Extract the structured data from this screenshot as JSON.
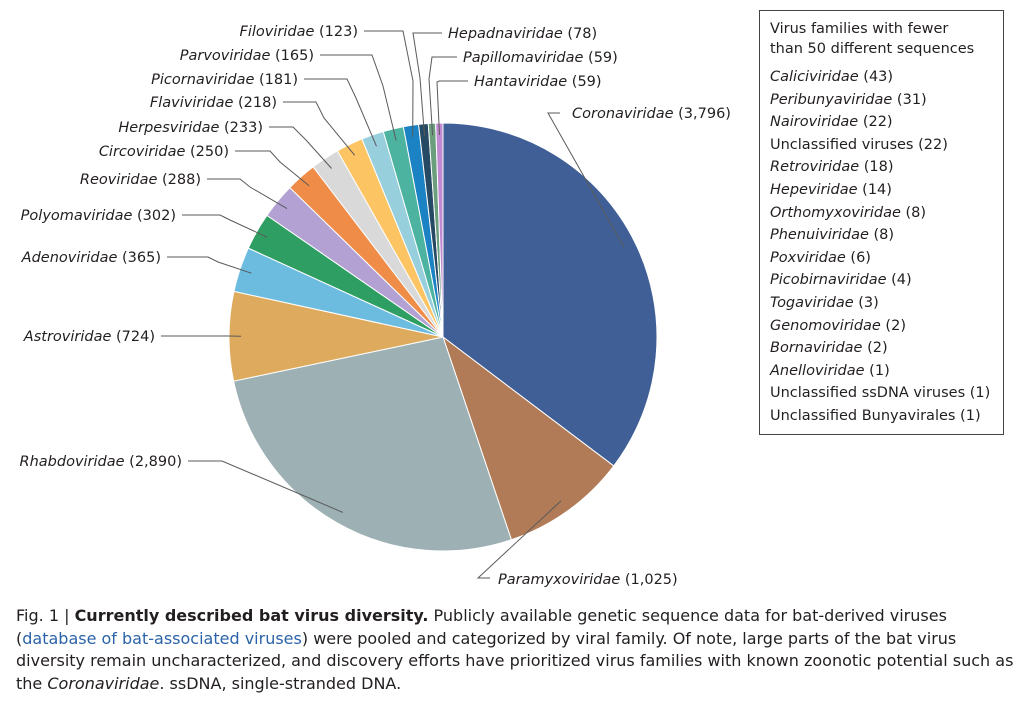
{
  "chart_data": {
    "type": "pie",
    "slices": [
      {
        "label": "Coronaviridae",
        "display": "(3,796)",
        "value": 3796,
        "color": "#3f5f96",
        "italic": true
      },
      {
        "label": "Paramyxoviridae",
        "display": "(1,025)",
        "value": 1025,
        "color": "#b07b56",
        "italic": true
      },
      {
        "label": "Rhabdoviridae",
        "display": "(2,890)",
        "value": 2890,
        "color": "#9db1b5",
        "italic": true
      },
      {
        "label": "Astroviridae",
        "display": "(724)",
        "value": 724,
        "color": "#deab5e",
        "italic": true
      },
      {
        "label": "Adenoviridae",
        "display": "(365)",
        "value": 365,
        "color": "#6cbcdf",
        "italic": true
      },
      {
        "label": "Polyomaviridae",
        "display": "(302)",
        "value": 302,
        "color": "#2e9e62",
        "italic": true
      },
      {
        "label": "Reoviridae",
        "display": "(288)",
        "value": 288,
        "color": "#b2a1d2",
        "italic": true
      },
      {
        "label": "Circoviridae",
        "display": "(250)",
        "value": 250,
        "color": "#ee8c48",
        "italic": true
      },
      {
        "label": "Herpesviridae",
        "display": "(233)",
        "value": 233,
        "color": "#d9d9d9",
        "italic": true
      },
      {
        "label": "Flaviviridae",
        "display": "(218)",
        "value": 218,
        "color": "#fcc463",
        "italic": true
      },
      {
        "label": "Picornaviridae",
        "display": "(181)",
        "value": 181,
        "color": "#98cfdc",
        "italic": true
      },
      {
        "label": "Parvoviridae",
        "display": "(165)",
        "value": 165,
        "color": "#4bb39f",
        "italic": true
      },
      {
        "label": "Filoviridae",
        "display": "(123)",
        "value": 123,
        "color": "#1b82c3",
        "italic": true
      },
      {
        "label": "Hepadnaviridae",
        "display": "(78)",
        "value": 78,
        "color": "#264a63",
        "italic": true
      },
      {
        "label": "Papillomaviridae",
        "display": "(59)",
        "value": 59,
        "color": "#6b9e7c",
        "italic": true
      },
      {
        "label": "Hantaviridae",
        "display": "(59)",
        "value": 59,
        "color": "#c08ad1",
        "italic": true
      }
    ]
  },
  "small_families": {
    "title_line1": "Virus families with fewer",
    "title_line2": "than 50 different sequences",
    "items": [
      {
        "name": "Caliciviridae",
        "count": "(43)",
        "italic": true
      },
      {
        "name": "Peribunyaviridae",
        "count": "(31)",
        "italic": true
      },
      {
        "name": "Nairoviridae",
        "count": "(22)",
        "italic": true
      },
      {
        "name": "Unclassified viruses",
        "count": "(22)",
        "italic": false
      },
      {
        "name": "Retroviridae",
        "count": "(18)",
        "italic": true
      },
      {
        "name": "Hepeviridae",
        "count": "(14)",
        "italic": true
      },
      {
        "name": "Orthomyxoviridae",
        "count": "(8)",
        "italic": true
      },
      {
        "name": "Phenuiviridae",
        "count": "(8)",
        "italic": true
      },
      {
        "name": "Poxviridae",
        "count": "(6)",
        "italic": true
      },
      {
        "name": "Picobirnaviridae",
        "count": "(4)",
        "italic": true
      },
      {
        "name": "Togaviridae",
        "count": "(3)",
        "italic": true
      },
      {
        "name": "Genomoviridae",
        "count": "(2)",
        "italic": true
      },
      {
        "name": "Bornaviridae",
        "count": "(2)",
        "italic": true
      },
      {
        "name": "Anelloviridae",
        "count": "(1)",
        "italic": true
      },
      {
        "name": "Unclassified ssDNA viruses",
        "count": "(1)",
        "italic": false
      },
      {
        "name": "Unclassified Bunyavirales",
        "count": "(1)",
        "italic": false
      }
    ]
  },
  "caption": {
    "fig_label": "Fig. 1 |",
    "title": "Currently described bat virus diversity.",
    "text1": "Publicly available genetic sequence data for bat-derived viruses",
    "paren_open": "(",
    "link_text": "database of bat-associated viruses",
    "text2": ") were pooled and categorized by viral family. Of note, large parts of the bat virus diversity remain uncharacterized, and discovery efforts have prioritized virus families with known zoonotic potential such as the",
    "italic_term": "Coronaviridae",
    "text3": ". ssDNA, single-stranded DNA."
  }
}
